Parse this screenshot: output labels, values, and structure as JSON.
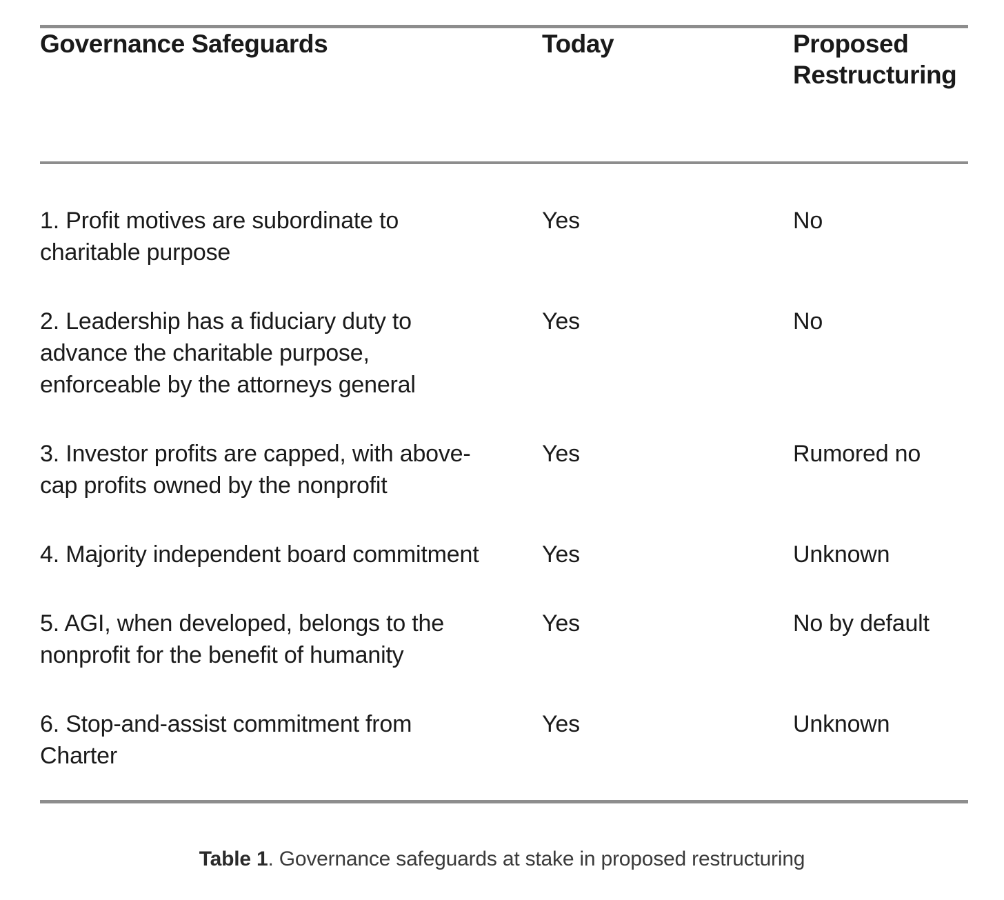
{
  "table": {
    "header": {
      "col1": "Governance Safeguards",
      "col2": "Today",
      "col3": "Proposed Restructuring"
    },
    "rows": [
      {
        "safeguard": "1. Profit motives are subordinate to\ncharitable purpose",
        "today": "Yes",
        "proposed": "No"
      },
      {
        "safeguard": "2. Leadership has a fiduciary duty to\nadvance the charitable purpose,\nenforceable by the attorneys general",
        "today": "Yes",
        "proposed": "No"
      },
      {
        "safeguard": "3. Investor profits are capped, with above-\ncap profits owned by the nonprofit",
        "today": "Yes",
        "proposed": "Rumored no"
      },
      {
        "safeguard": "4. Majority independent board commitment",
        "today": "Yes",
        "proposed": "Unknown"
      },
      {
        "safeguard": "5. AGI, when developed, belongs to the\nnonprofit for the benefit of humanity",
        "today": "Yes",
        "proposed": "No by default"
      },
      {
        "safeguard": "6. Stop-and-assist commitment from\nCharter",
        "today": "Yes",
        "proposed": "Unknown"
      }
    ]
  },
  "caption": {
    "label": "Table 1",
    "text": ". Governance safeguards at stake in proposed restructuring"
  },
  "colors": {
    "rule": "#8d8d8d",
    "text": "#1a1a1a",
    "caption": "#3b3b3b"
  }
}
